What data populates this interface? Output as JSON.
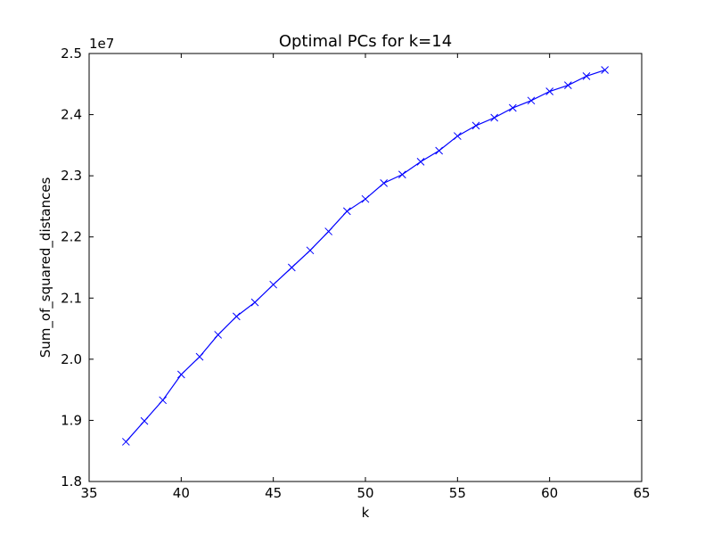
{
  "chart_data": {
    "type": "line",
    "title": "Optimal PCs for k=14",
    "xlabel": "k",
    "ylabel": "Sum_of_squared_distances",
    "y_multiplier_label": "1e7",
    "xlim": [
      35,
      65
    ],
    "ylim": [
      18000000,
      25000000
    ],
    "x_ticks": [
      35,
      40,
      45,
      50,
      55,
      60,
      65
    ],
    "x_tick_labels": [
      "35",
      "40",
      "45",
      "50",
      "55",
      "60",
      "65"
    ],
    "y_ticks": [
      18000000,
      19000000,
      20000000,
      21000000,
      22000000,
      23000000,
      24000000,
      25000000
    ],
    "y_tick_labels": [
      "1.8",
      "1.9",
      "2.0",
      "2.1",
      "2.2",
      "2.3",
      "2.4",
      "2.5"
    ],
    "grid": false,
    "marker": "x",
    "line_color": "#0000ff",
    "series": [
      {
        "x": [
          37,
          38,
          39,
          40,
          41,
          42,
          43,
          44,
          45,
          46,
          47,
          48,
          49,
          50,
          51,
          52,
          53,
          54,
          55,
          56,
          57,
          58,
          59,
          60,
          61,
          62,
          63
        ],
        "values": [
          18650000,
          18990000,
          19330000,
          19750000,
          20040000,
          20400000,
          20700000,
          20930000,
          21220000,
          21500000,
          21780000,
          22090000,
          22420000,
          22620000,
          22880000,
          23020000,
          23230000,
          23410000,
          23650000,
          23820000,
          23950000,
          24110000,
          24230000,
          24380000,
          24480000,
          24630000,
          24730000
        ]
      }
    ]
  }
}
